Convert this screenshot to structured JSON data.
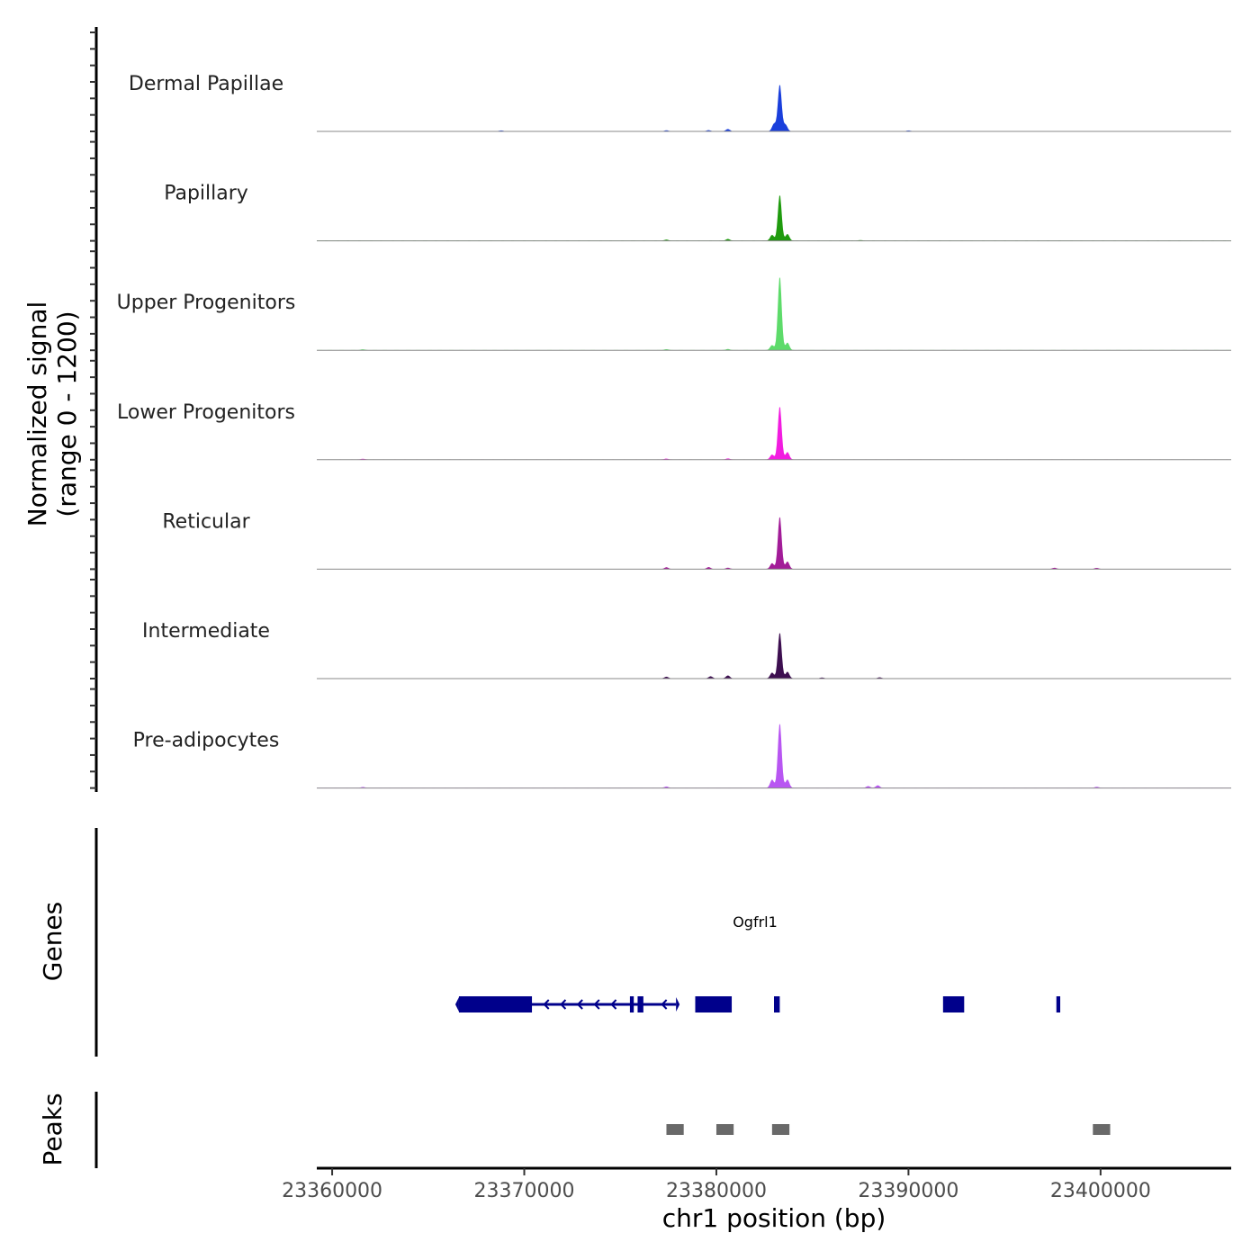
{
  "chart_data": {
    "type": "genome-coverage",
    "y_axis_title_line1": "Normalized signal",
    "y_axis_title_line2": "(range 0 - 1200)",
    "ylim": [
      0,
      1200
    ],
    "x_axis_title": "chr1 position (bp)",
    "xlim": [
      23359200,
      23406800
    ],
    "x_ticks": [
      {
        "value": 23360000,
        "label": "23360000"
      },
      {
        "value": 23370000,
        "label": "23370000"
      },
      {
        "value": 23380000,
        "label": "23380000"
      },
      {
        "value": 23390000,
        "label": "23390000"
      },
      {
        "value": 23400000,
        "label": "23400000"
      }
    ],
    "tracks": [
      {
        "name": "Dermal Papillae",
        "color": "#1a3fdc",
        "peaks": [
          [
            23383300,
            570
          ],
          [
            23383600,
            80
          ],
          [
            23383000,
            90
          ],
          [
            23380600,
            25
          ],
          [
            23379600,
            12
          ],
          [
            23377400,
            10
          ],
          [
            23368800,
            8
          ],
          [
            23390000,
            8
          ]
        ]
      },
      {
        "name": "Papillary",
        "color": "#1f9b0e",
        "peaks": [
          [
            23383300,
            560
          ],
          [
            23383700,
            80
          ],
          [
            23382900,
            70
          ],
          [
            23380600,
            20
          ],
          [
            23377400,
            12
          ],
          [
            23387500,
            6
          ]
        ]
      },
      {
        "name": "Upper Progenitors",
        "color": "#5ddb6a",
        "peaks": [
          [
            23383300,
            900
          ],
          [
            23383700,
            90
          ],
          [
            23382900,
            60
          ],
          [
            23380600,
            12
          ],
          [
            23377400,
            10
          ],
          [
            23361600,
            8
          ]
        ]
      },
      {
        "name": "Lower Progenitors",
        "color": "#f21ce0",
        "peaks": [
          [
            23383300,
            650
          ],
          [
            23383700,
            90
          ],
          [
            23382900,
            60
          ],
          [
            23380600,
            12
          ],
          [
            23377400,
            10
          ],
          [
            23361600,
            8
          ]
        ]
      },
      {
        "name": "Reticular",
        "color": "#a21c98",
        "peaks": [
          [
            23383300,
            640
          ],
          [
            23383700,
            90
          ],
          [
            23382900,
            70
          ],
          [
            23379600,
            22
          ],
          [
            23380600,
            15
          ],
          [
            23377400,
            20
          ],
          [
            23397600,
            14
          ],
          [
            23399800,
            12
          ]
        ]
      },
      {
        "name": "Intermediate",
        "color": "#3d0f50",
        "peaks": [
          [
            23383300,
            560
          ],
          [
            23383700,
            80
          ],
          [
            23382900,
            70
          ],
          [
            23380600,
            35
          ],
          [
            23379700,
            25
          ],
          [
            23377400,
            20
          ],
          [
            23385500,
            10
          ],
          [
            23388500,
            12
          ]
        ]
      },
      {
        "name": "Pre-adipocytes",
        "color": "#b856f2",
        "peaks": [
          [
            23383300,
            790
          ],
          [
            23383700,
            100
          ],
          [
            23382900,
            100
          ],
          [
            23388400,
            30
          ],
          [
            23387900,
            20
          ],
          [
            23377400,
            15
          ],
          [
            23399800,
            12
          ],
          [
            23361600,
            10
          ]
        ]
      }
    ],
    "genes_title": "Genes",
    "gene": {
      "name": "Ogfrl1",
      "strand": "-",
      "start": 23366600,
      "end": 23377900,
      "color": "#00008b",
      "exons": [
        [
          23366600,
          23370400
        ],
        [
          23375500,
          23375700
        ],
        [
          23375900,
          23376200
        ],
        [
          23378900,
          23380800
        ],
        [
          23383000,
          23383300
        ],
        [
          23391800,
          23392900
        ],
        [
          23397700,
          23397900
        ]
      ]
    },
    "peaks_title": "Peaks",
    "peak_regions": [
      [
        23377400,
        23378300
      ],
      [
        23380000,
        23380900
      ],
      [
        23382900,
        23383800
      ],
      [
        23399600,
        23400500
      ]
    ],
    "peak_color": "#696969"
  }
}
